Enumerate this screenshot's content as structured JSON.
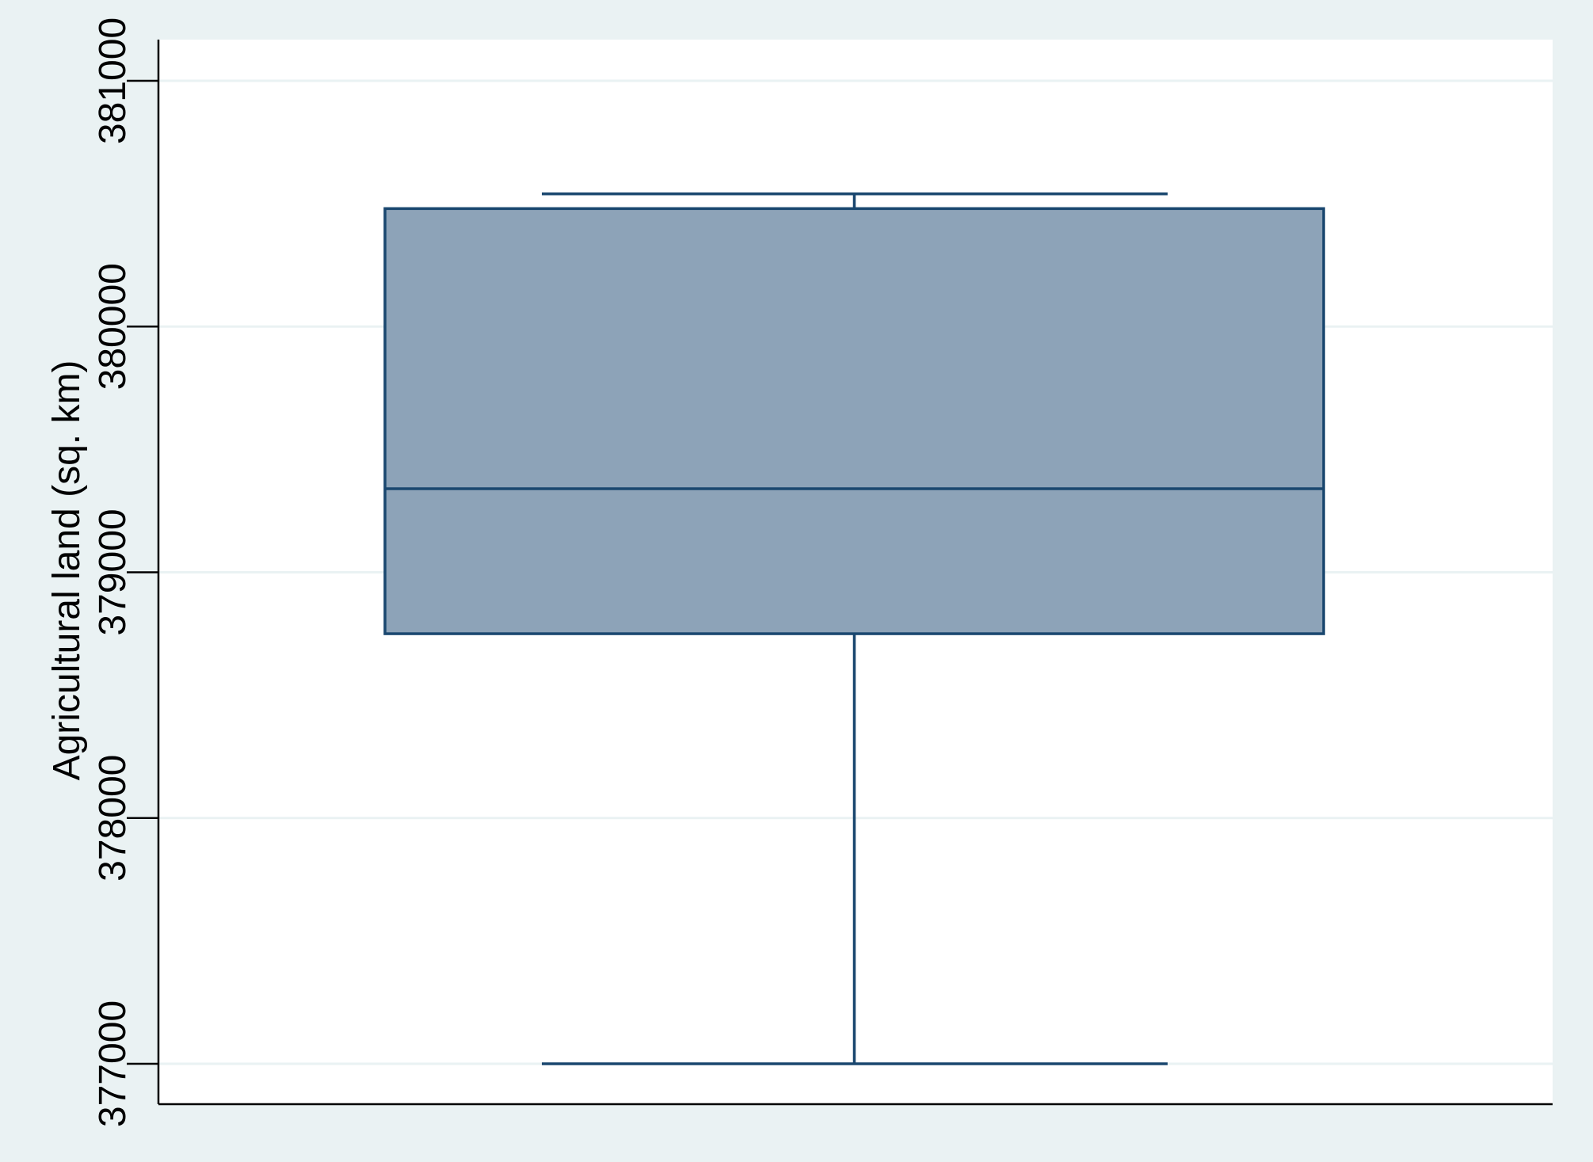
{
  "chart_data": {
    "type": "box",
    "ylabel": "Agricultural land (sq. km)",
    "ylim": [
      377000,
      381000
    ],
    "yticks": [
      377000,
      378000,
      379000,
      380000,
      381000
    ],
    "ytick_labels": [
      "377000",
      "378000",
      "379000",
      "380000",
      "381000"
    ],
    "grid": true,
    "box": {
      "min": 377000,
      "q1": 378750,
      "median": 379340,
      "q3": 380480,
      "max": 380540
    },
    "colors": {
      "background": "#eaf2f3",
      "plot_area": "#ffffff",
      "box_fill": "#8da3b8",
      "box_stroke": "#1a476f",
      "grid": "#eaf2f3",
      "axis": "#000000"
    }
  }
}
